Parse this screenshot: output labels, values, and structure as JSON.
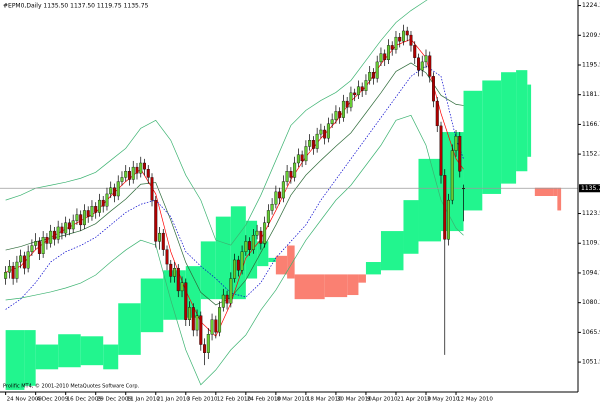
{
  "chart_data": {
    "type": "candlestick",
    "title": "#EPM0,Daily  1135.50 1137.50 1119.75 1135.75",
    "footer": "Prolific MT4, © 2001-2010 MetaQuotes Software Corp.",
    "up_color": "#66cc33",
    "down_color": "#b00000",
    "open": [
      1092,
      1095,
      1098,
      1092,
      1100,
      1103,
      1097,
      1105,
      1108,
      1110,
      1104,
      1112,
      1109,
      1115,
      1111,
      1117,
      1114,
      1119,
      1116,
      1120,
      1123,
      1118,
      1125,
      1122,
      1127,
      1124,
      1130,
      1127,
      1133,
      1136,
      1132,
      1139,
      1141,
      1144,
      1140,
      1146,
      1143,
      1148,
      1145,
      1141,
      1130,
      1110,
      1114,
      1106,
      1099,
      1093,
      1097,
      1086,
      1090,
      1072,
      1078,
      1067,
      1074,
      1060,
      1056,
      1065,
      1072,
      1066,
      1078,
      1084,
      1080,
      1092,
      1101,
      1096,
      1105,
      1110,
      1106,
      1113,
      1115,
      1109,
      1119,
      1125,
      1128,
      1134,
      1131,
      1139,
      1144,
      1141,
      1148,
      1152,
      1149,
      1156,
      1159,
      1155,
      1162,
      1164,
      1160,
      1167,
      1169,
      1173,
      1170,
      1178,
      1175,
      1182,
      1181,
      1185,
      1183,
      1188,
      1192,
      1189,
      1197,
      1201,
      1198,
      1205,
      1203,
      1209,
      1207,
      1212,
      1210,
      1205,
      1199,
      1193,
      1197,
      1200,
      1190,
      1178,
      1166,
      1142,
      1111,
      1130,
      1154,
      1161,
      1135.5
    ],
    "high": [
      1098,
      1101,
      1100,
      1103,
      1106,
      1105,
      1108,
      1111,
      1114,
      1112,
      1115,
      1114,
      1118,
      1117,
      1120,
      1119,
      1122,
      1121,
      1123,
      1126,
      1125,
      1128,
      1127,
      1130,
      1129,
      1133,
      1132,
      1136,
      1139,
      1138,
      1142,
      1144,
      1147,
      1146,
      1149,
      1148,
      1151,
      1150,
      1147,
      1143,
      1132,
      1117,
      1116,
      1108,
      1101,
      1100,
      1099,
      1093,
      1092,
      1081,
      1080,
      1077,
      1076,
      1063,
      1068,
      1075,
      1074,
      1081,
      1087,
      1086,
      1095,
      1104,
      1103,
      1108,
      1113,
      1112,
      1116,
      1118,
      1117,
      1122,
      1128,
      1131,
      1137,
      1136,
      1142,
      1147,
      1146,
      1151,
      1155,
      1154,
      1159,
      1162,
      1161,
      1165,
      1167,
      1166,
      1170,
      1172,
      1176,
      1175,
      1181,
      1180,
      1185,
      1184,
      1188,
      1187,
      1191,
      1195,
      1194,
      1200,
      1204,
      1203,
      1208,
      1207,
      1212,
      1211,
      1215,
      1214,
      1212,
      1207,
      1201,
      1200,
      1203,
      1202,
      1192,
      1180,
      1168,
      1145,
      1133,
      1157,
      1164,
      1163,
      1137.5
    ],
    "low": [
      1089,
      1092,
      1089,
      1090,
      1097,
      1094,
      1095,
      1103,
      1106,
      1101,
      1102,
      1106,
      1107,
      1108,
      1109,
      1111,
      1112,
      1113,
      1114,
      1118,
      1115,
      1116,
      1119,
      1120,
      1121,
      1122,
      1124,
      1125,
      1131,
      1129,
      1130,
      1137,
      1139,
      1137,
      1138,
      1140,
      1141,
      1142,
      1138,
      1127,
      1107,
      1106,
      1103,
      1096,
      1090,
      1090,
      1083,
      1083,
      1069,
      1069,
      1064,
      1064,
      1057,
      1050,
      1053,
      1062,
      1063,
      1064,
      1076,
      1077,
      1078,
      1090,
      1093,
      1094,
      1103,
      1103,
      1104,
      1111,
      1106,
      1107,
      1117,
      1123,
      1126,
      1128,
      1129,
      1137,
      1138,
      1139,
      1146,
      1146,
      1147,
      1154,
      1152,
      1153,
      1160,
      1157,
      1158,
      1165,
      1167,
      1167,
      1168,
      1172,
      1173,
      1178,
      1179,
      1180,
      1181,
      1186,
      1186,
      1187,
      1195,
      1195,
      1196,
      1200,
      1201,
      1204,
      1205,
      1207,
      1202,
      1196,
      1190,
      1190,
      1194,
      1187,
      1175,
      1163,
      1138,
      1055,
      1108,
      1128,
      1151,
      1141,
      1119.75
    ],
    "close": [
      1095,
      1098,
      1092,
      1100,
      1103,
      1097,
      1105,
      1108,
      1110,
      1104,
      1112,
      1109,
      1115,
      1111,
      1117,
      1114,
      1119,
      1116,
      1120,
      1123,
      1118,
      1125,
      1122,
      1127,
      1124,
      1130,
      1127,
      1133,
      1136,
      1132,
      1139,
      1141,
      1144,
      1140,
      1146,
      1143,
      1148,
      1145,
      1141,
      1130,
      1110,
      1114,
      1106,
      1099,
      1093,
      1097,
      1086,
      1090,
      1072,
      1078,
      1067,
      1074,
      1060,
      1056,
      1065,
      1072,
      1066,
      1078,
      1084,
      1080,
      1092,
      1101,
      1096,
      1105,
      1110,
      1106,
      1113,
      1115,
      1109,
      1119,
      1125,
      1128,
      1134,
      1131,
      1139,
      1144,
      1141,
      1148,
      1152,
      1149,
      1156,
      1159,
      1155,
      1162,
      1164,
      1160,
      1167,
      1169,
      1173,
      1170,
      1178,
      1175,
      1182,
      1181,
      1185,
      1183,
      1188,
      1192,
      1189,
      1197,
      1201,
      1198,
      1205,
      1203,
      1209,
      1207,
      1212,
      1210,
      1205,
      1199,
      1193,
      1197,
      1200,
      1190,
      1178,
      1166,
      1142,
      1111,
      1130,
      1154,
      1161,
      1144,
      1135.75
    ],
    "last_price": 1135.75,
    "cloud": {
      "bull_color": "#22f58e",
      "bear_color": "#fa8072",
      "x": [
        0,
        5,
        8,
        14,
        20,
        26,
        30,
        36,
        42,
        48,
        52,
        56,
        60,
        64,
        67,
        70,
        72,
        75,
        77,
        85,
        91,
        94,
        96,
        100,
        106,
        110,
        116,
        122,
        127,
        132,
        136,
        139,
        140,
        141,
        146,
        147
      ],
      "span_a": [
        1067,
        1067,
        1060,
        1065,
        1064,
        1060,
        1080,
        1092,
        1096,
        1098,
        1110,
        1122,
        1127,
        1120,
        1110,
        1102,
        1094,
        1092,
        1082,
        1083,
        1084,
        1090,
        1100,
        1115,
        1130,
        1150,
        1163,
        1183,
        1188,
        1192,
        1193,
        1186,
        1151,
        1132,
        1132,
        1125
      ],
      "span_b": [
        1038,
        1040,
        1048,
        1049,
        1050,
        1048,
        1055,
        1066,
        1072,
        1073,
        1082,
        1082,
        1082,
        1092,
        1098,
        1100,
        1103,
        1108,
        1094,
        1094,
        1094,
        1094,
        1094,
        1096,
        1104,
        1110,
        1115,
        1125,
        1133,
        1138,
        1144,
        1151,
        1151,
        1136,
        1136,
        1136
      ]
    },
    "overlay_x": [
      0,
      4,
      8,
      12,
      16,
      20,
      24,
      28,
      32,
      36,
      40,
      44,
      48,
      52,
      56,
      60,
      64,
      68,
      72,
      76,
      80,
      84,
      88,
      92,
      96,
      100,
      104,
      108,
      112,
      116,
      120,
      122
    ],
    "overlays": [
      {
        "color": "#3cb371",
        "style": "solid",
        "values": [
          1130,
          1132.4,
          1135.8,
          1137.2,
          1138.7,
          1140.6,
          1143.5,
          1149.3,
          1155.1,
          1164.8,
          1168.7,
          1159,
          1142.1,
          1130,
          1110.6,
          1108.2,
          1117.9,
          1132.4,
          1149.3,
          1166.2,
          1173.5,
          1178.3,
          1182.2,
          1188,
          1197.7,
          1207.4,
          1216.1,
          1221.9,
          1226.7,
          1231.6,
          1236.4,
          1238.8
        ]
      },
      {
        "color": "#3cb371",
        "style": "solid",
        "values": [
          1081.6,
          1082.5,
          1084,
          1085.5,
          1087.4,
          1089.8,
          1093.7,
          1100,
          1105.8,
          1110.6,
          1108.2,
          1081.6,
          1057.4,
          1040.5,
          1047.7,
          1057.4,
          1064.6,
          1076.7,
          1086.4,
          1098.5,
          1110.6,
          1120.3,
          1130,
          1137.2,
          1146.9,
          1156.6,
          1168.7,
          1171.1,
          1156.6,
          1130,
          1116.4,
          1113
        ]
      },
      {
        "color": "#2e6b3a",
        "style": "solid",
        "values": [
          1105.8,
          1107.5,
          1109.9,
          1111.4,
          1113.1,
          1115.2,
          1118.6,
          1124.7,
          1130.5,
          1137.7,
          1138.5,
          1120.3,
          1099.8,
          1085.3,
          1079.2,
          1082.8,
          1091.3,
          1104.6,
          1117.9,
          1132.4,
          1142.1,
          1149.3,
          1156.1,
          1162.6,
          1172.3,
          1182,
          1192.4,
          1196.5,
          1191.7,
          1180.8,
          1176.4,
          1175.9
        ]
      },
      {
        "color": "#ff0000",
        "style": "solid",
        "values": [
          1095,
          1098,
          1106,
          1112,
          1116,
          1120,
          1124,
          1132,
          1139,
          1145,
          1133,
          1105,
          1086,
          1071,
          1064,
          1080,
          1102,
          1111,
          1125,
          1140,
          1151,
          1160,
          1168,
          1178,
          1185,
          1196,
          1205,
          1208,
          1199,
          1172,
          1150,
          1145
        ]
      },
      {
        "color": "#0000cd",
        "style": "dotted",
        "values": [
          1077,
          1082,
          1090,
          1100,
          1105,
          1108,
          1112,
          1118,
          1124,
          1128,
          1130,
          1122,
          1105,
          1098,
          1092,
          1085,
          1083,
          1090,
          1102,
          1110,
          1118,
          1130,
          1140,
          1150,
          1160,
          1170,
          1180,
          1190,
          1195,
          1190,
          1160,
          1150
        ]
      }
    ],
    "xlim": [
      -1.5,
      152.5
    ],
    "xticks": [
      {
        "value": 0,
        "label": "24 Nov 2009"
      },
      {
        "value": 8,
        "label": "4 Dec 2009"
      },
      {
        "value": 16,
        "label": "16 Dec 2009"
      },
      {
        "value": 24,
        "label": "29 Dec 2009"
      },
      {
        "value": 32,
        "label": "11 Jan 2010"
      },
      {
        "value": 40,
        "label": "21 Jan 2010"
      },
      {
        "value": 48,
        "label": "3 Feb 2010"
      },
      {
        "value": 56,
        "label": "12 Feb 2010"
      },
      {
        "value": 64,
        "label": "24 Feb 2010"
      },
      {
        "value": 72,
        "label": "8 Mar 2010"
      },
      {
        "value": 80,
        "label": "18 Mar 2010"
      },
      {
        "value": 88,
        "label": "30 Mar 2010"
      },
      {
        "value": 96,
        "label": "9 Apr 2010"
      },
      {
        "value": 104,
        "label": "21 Apr 2010"
      },
      {
        "value": 112,
        "label": "3 May 2010"
      },
      {
        "value": 120,
        "label": "12 May 2010"
      }
    ],
    "ylim": [
      1037,
      1227
    ],
    "yticks": [
      {
        "value": 1224.3,
        "label": "1224.30"
      },
      {
        "value": 1209.9,
        "label": "1209.90"
      },
      {
        "value": 1195.5,
        "label": "1195.50"
      },
      {
        "value": 1181.1,
        "label": "1181.10"
      },
      {
        "value": 1166.7,
        "label": "1166.70"
      },
      {
        "value": 1152.3,
        "label": "1152.30"
      },
      {
        "value": 1123.5,
        "label": "1123.50"
      },
      {
        "value": 1109.1,
        "label": "1109.10"
      },
      {
        "value": 1094.7,
        "label": "1094.70"
      },
      {
        "value": 1080.3,
        "label": "1080.30"
      },
      {
        "value": 1065.9,
        "label": "1065.90"
      },
      {
        "value": 1051.5,
        "label": "1051.50"
      }
    ]
  }
}
